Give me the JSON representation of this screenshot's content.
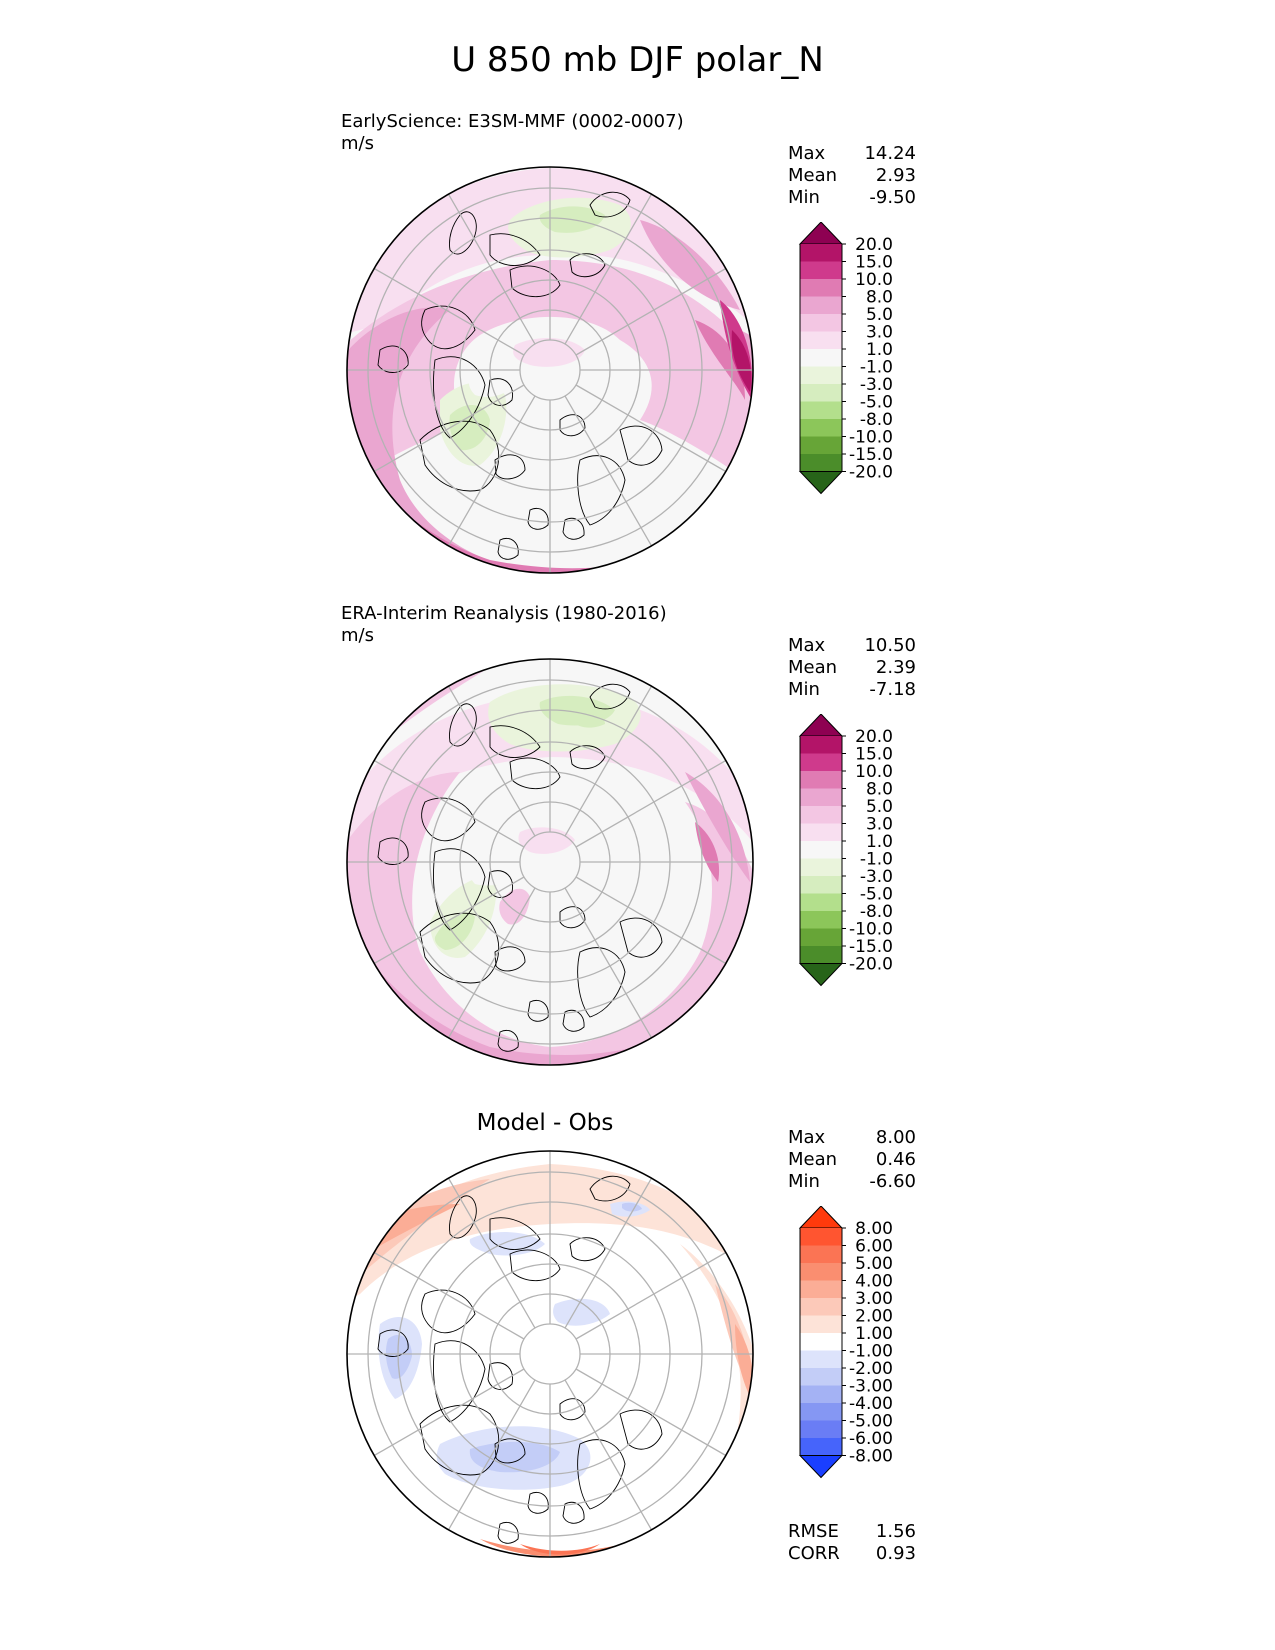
{
  "figure": {
    "title": "U 850 mb DJF polar_N"
  },
  "panels": [
    {
      "title_lines": [
        "EarlyScience: E3SM-MMF (0002-0007)",
        "m/s"
      ],
      "stats": [
        {
          "label": "Max",
          "value": "14.24"
        },
        {
          "label": "Mean",
          "value": "2.93"
        },
        {
          "label": "Min",
          "value": "-9.50"
        }
      ],
      "colormap": "PiYG_r",
      "field": "model"
    },
    {
      "title_lines": [
        "ERA-Interim Reanalysis (1980-2016)",
        "m/s"
      ],
      "stats": [
        {
          "label": "Max",
          "value": "10.50"
        },
        {
          "label": "Mean",
          "value": "2.39"
        },
        {
          "label": "Min",
          "value": "-7.18"
        }
      ],
      "colormap": "PiYG_r",
      "field": "obs"
    },
    {
      "title": "Model - Obs",
      "stats": [
        {
          "label": "Max",
          "value": "8.00"
        },
        {
          "label": "Mean",
          "value": "0.46"
        },
        {
          "label": "Min",
          "value": "-6.60"
        }
      ],
      "footer_stats": [
        {
          "label": "RMSE",
          "value": "1.56"
        },
        {
          "label": "CORR",
          "value": "0.93"
        }
      ],
      "colormap": "RdBu_r",
      "field": "diff"
    }
  ],
  "chart_data": [
    {
      "type": "heatmap",
      "projection": "north-polar-stereographic",
      "variable": "U 850 mb",
      "units": "m/s",
      "colorbar": {
        "labels": [
          "20.0",
          "15.0",
          "10.0",
          "8.0",
          "5.0",
          "3.0",
          "1.0",
          "-1.0",
          "-3.0",
          "-5.0",
          "-8.0",
          "-10.0",
          "-15.0",
          "-20.0"
        ],
        "colors": [
          "#8e0152",
          "#b31468",
          "#cf3a8c",
          "#e07bb3",
          "#eaa6d0",
          "#f3c6e3",
          "#f8dff0",
          "#f7f7f7",
          "#eaf4dc",
          "#d6edbf",
          "#b3df8c",
          "#8cc65a",
          "#67a537",
          "#4b8d2a",
          "#276419"
        ],
        "extend": "both"
      }
    },
    {
      "type": "heatmap",
      "projection": "north-polar-stereographic",
      "variable": "U 850 mb",
      "units": "m/s",
      "colorbar": {
        "labels": [
          "20.0",
          "15.0",
          "10.0",
          "8.0",
          "5.0",
          "3.0",
          "1.0",
          "-1.0",
          "-3.0",
          "-5.0",
          "-8.0",
          "-10.0",
          "-15.0",
          "-20.0"
        ],
        "colors": [
          "#8e0152",
          "#b31468",
          "#cf3a8c",
          "#e07bb3",
          "#eaa6d0",
          "#f3c6e3",
          "#f8dff0",
          "#f7f7f7",
          "#eaf4dc",
          "#d6edbf",
          "#b3df8c",
          "#8cc65a",
          "#67a537",
          "#4b8d2a",
          "#276419"
        ],
        "extend": "both"
      }
    },
    {
      "type": "heatmap",
      "projection": "north-polar-stereographic",
      "variable": "U 850 mb difference",
      "units": "m/s",
      "colorbar": {
        "labels": [
          "8.00",
          "6.00",
          "5.00",
          "4.00",
          "3.00",
          "2.00",
          "1.00",
          "-1.00",
          "-2.00",
          "-3.00",
          "-4.00",
          "-5.00",
          "-6.00",
          "-8.00"
        ],
        "colors": [
          "#ff3a0c",
          "#ff5530",
          "#fb7454",
          "#fa8e70",
          "#fbad96",
          "#fcc9b9",
          "#fde3d8",
          "#ffffff",
          "#dde3fb",
          "#c3cdf7",
          "#a4b2f4",
          "#8597f3",
          "#6a7df5",
          "#4664fb",
          "#1a3fff"
        ],
        "extend": "both"
      }
    }
  ]
}
